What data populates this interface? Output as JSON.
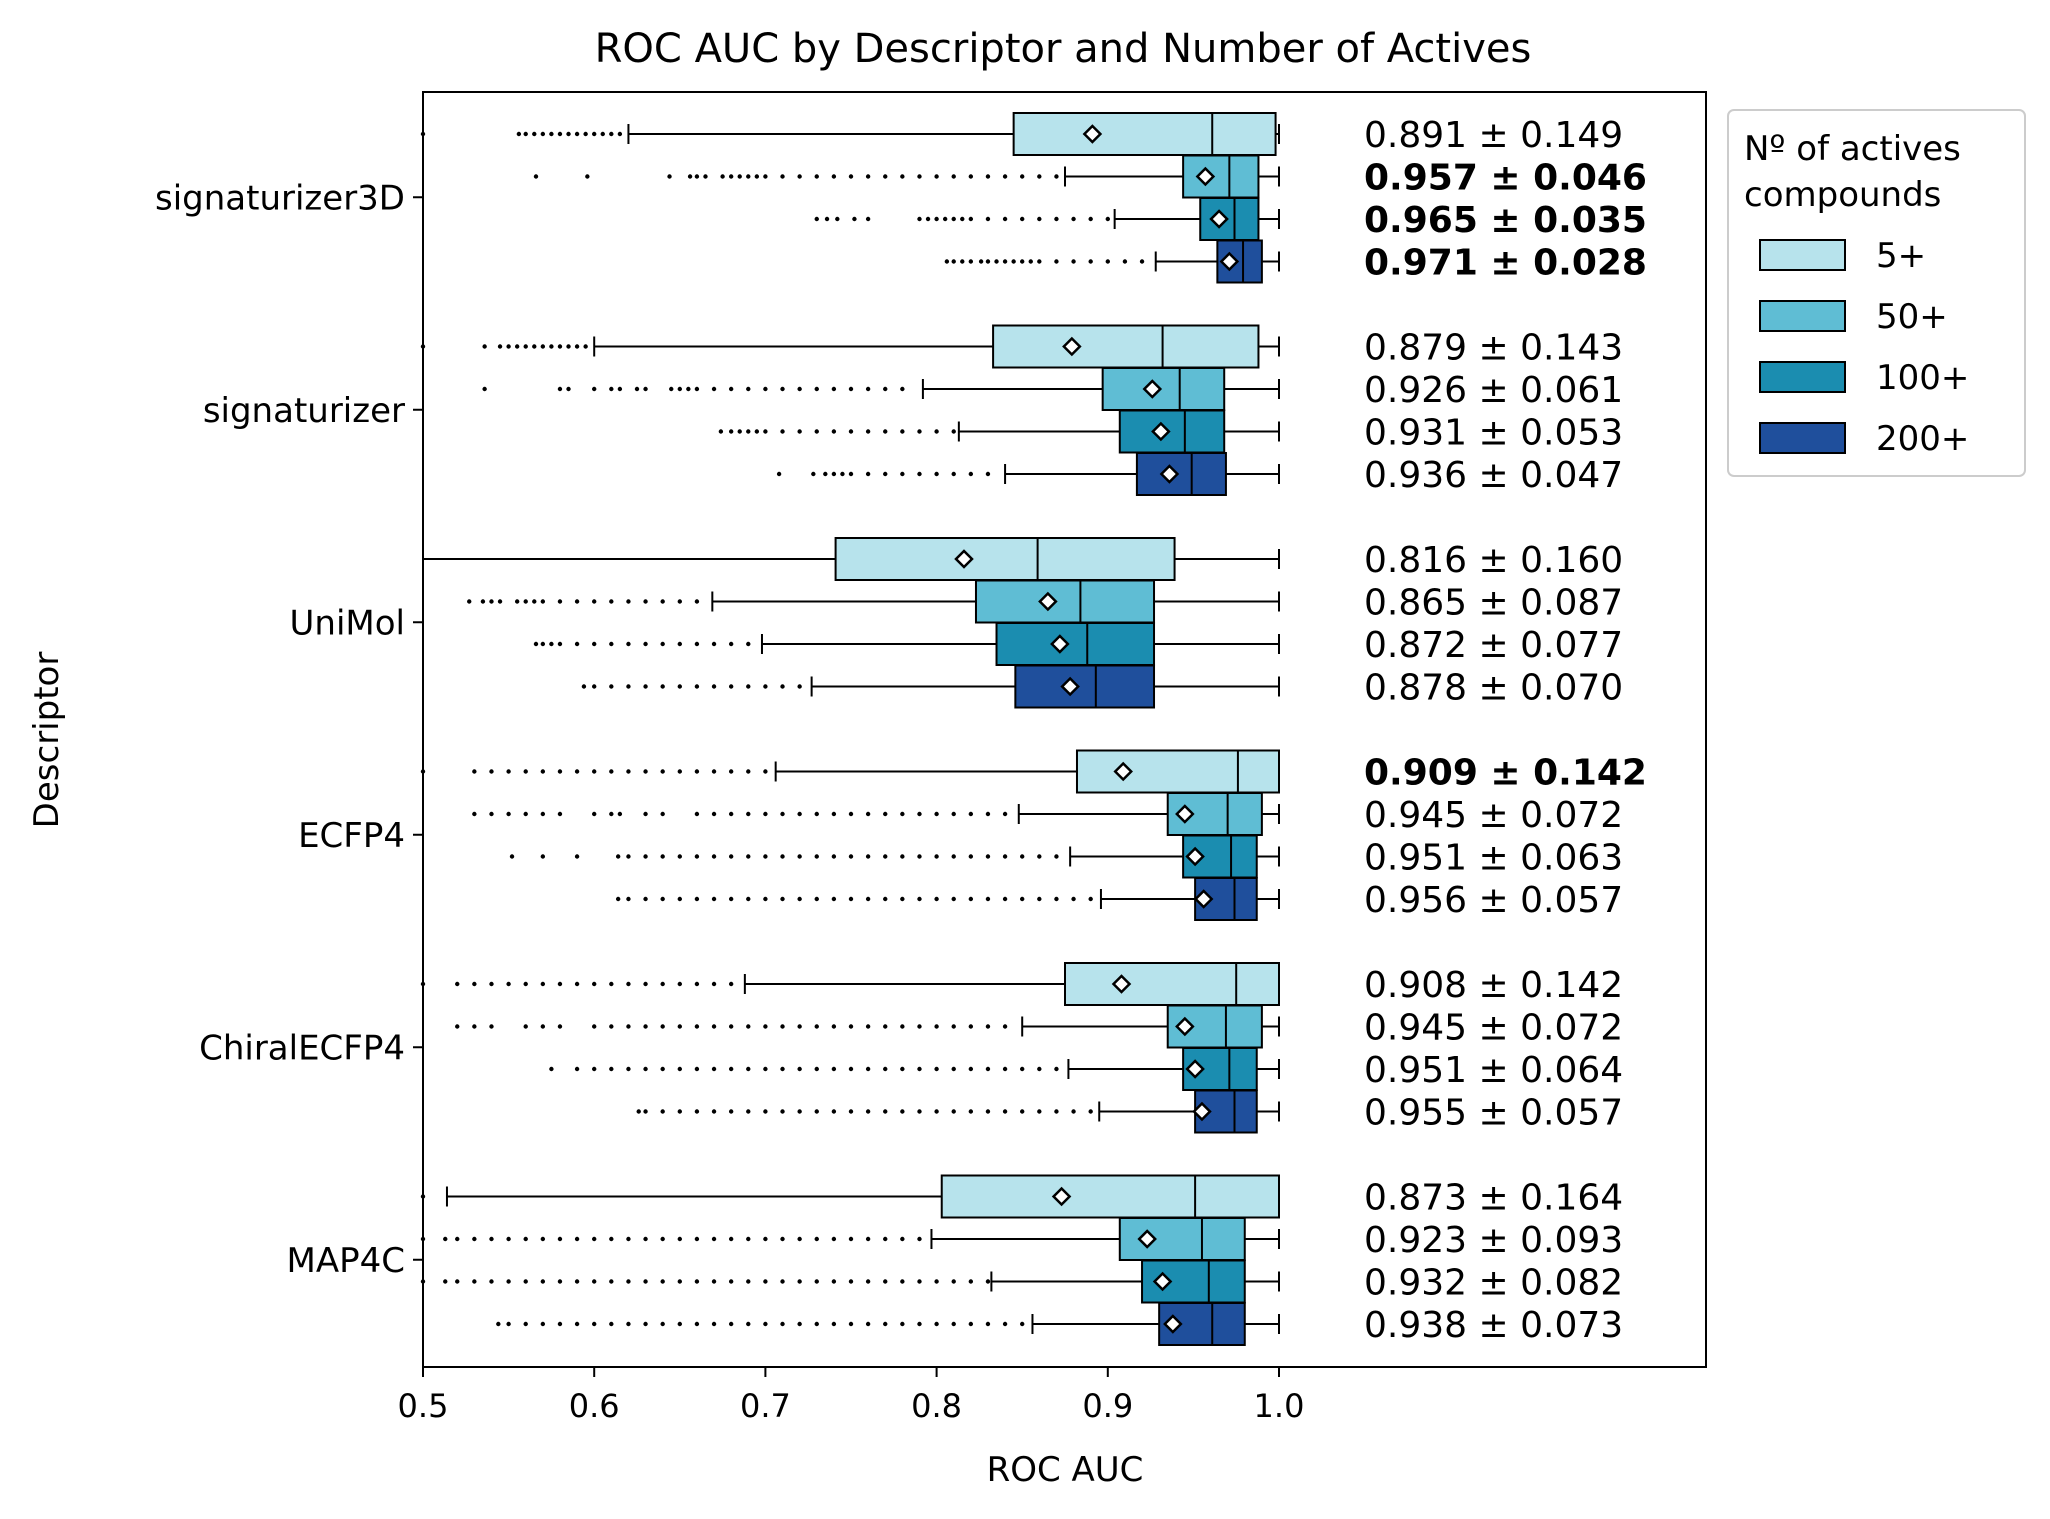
{
  "chart_data": {
    "type": "boxplot",
    "title": "ROC AUC by Descriptor and Number of Actives",
    "xlabel": "ROC AUC",
    "ylabel": "Descriptor",
    "xlim": [
      0.5,
      1.0
    ],
    "xticks": [
      "0.5",
      "0.6",
      "0.7",
      "0.8",
      "0.9",
      "1.0"
    ],
    "legend": {
      "title": "Nº of actives\ncompounds",
      "position": "outside-top-right",
      "entries": [
        {
          "label": "5+",
          "color": "#b7e3ec"
        },
        {
          "label": "50+",
          "color": "#5fbdd4"
        },
        {
          "label": "100+",
          "color": "#1b8db0"
        },
        {
          "label": "200+",
          "color": "#1f4f9c"
        }
      ]
    },
    "groups": [
      {
        "name": "signaturizer3D",
        "boxes": [
          {
            "series": "5+",
            "q1": 0.845,
            "median": 0.961,
            "q3": 0.998,
            "whisker_lo": 0.62,
            "whisker_hi": 1.0,
            "mean": 0.891,
            "label": "0.891 ± 0.149",
            "bold": false,
            "outliers": [
              0.5,
              0.556,
              0.56,
              0.565,
              0.57,
              0.575,
              0.58,
              0.585,
              0.59,
              0.595,
              0.6,
              0.605,
              0.61,
              0.615
            ]
          },
          {
            "series": "50+",
            "q1": 0.944,
            "median": 0.971,
            "q3": 0.988,
            "whisker_lo": 0.875,
            "whisker_hi": 1.0,
            "mean": 0.957,
            "label": "0.957 ± 0.046",
            "bold": true,
            "outliers": [
              0.566,
              0.596,
              0.644,
              0.656,
              0.66,
              0.665,
              0.675,
              0.68,
              0.685,
              0.69,
              0.695,
              0.7,
              0.71,
              0.72,
              0.73,
              0.74,
              0.75,
              0.76,
              0.77,
              0.78,
              0.79,
              0.8,
              0.81,
              0.82,
              0.83,
              0.84,
              0.85,
              0.86,
              0.87
            ]
          },
          {
            "series": "100+",
            "q1": 0.954,
            "median": 0.974,
            "q3": 0.988,
            "whisker_lo": 0.904,
            "whisker_hi": 1.0,
            "mean": 0.965,
            "label": "0.965 ± 0.035",
            "bold": true,
            "outliers": [
              0.73,
              0.736,
              0.742,
              0.752,
              0.76,
              0.79,
              0.795,
              0.8,
              0.805,
              0.81,
              0.815,
              0.82,
              0.83,
              0.84,
              0.85,
              0.86,
              0.87,
              0.88,
              0.89,
              0.9
            ]
          },
          {
            "series": "200+",
            "q1": 0.964,
            "median": 0.979,
            "q3": 0.99,
            "whisker_lo": 0.928,
            "whisker_hi": 1.0,
            "mean": 0.971,
            "label": "0.971 ± 0.028",
            "bold": true,
            "outliers": [
              0.806,
              0.81,
              0.815,
              0.82,
              0.826,
              0.83,
              0.835,
              0.84,
              0.845,
              0.85,
              0.855,
              0.86,
              0.87,
              0.88,
              0.89,
              0.9,
              0.91,
              0.92
            ]
          }
        ]
      },
      {
        "name": "signaturizer",
        "boxes": [
          {
            "series": "5+",
            "q1": 0.833,
            "median": 0.932,
            "q3": 0.988,
            "whisker_lo": 0.6,
            "whisker_hi": 1.0,
            "mean": 0.879,
            "label": "0.879 ± 0.143",
            "bold": false,
            "outliers": [
              0.5,
              0.536,
              0.545,
              0.55,
              0.555,
              0.56,
              0.565,
              0.57,
              0.575,
              0.58,
              0.585,
              0.59,
              0.595
            ]
          },
          {
            "series": "50+",
            "q1": 0.897,
            "median": 0.942,
            "q3": 0.968,
            "whisker_lo": 0.792,
            "whisker_hi": 1.0,
            "mean": 0.926,
            "label": "0.926 ± 0.061",
            "bold": false,
            "outliers": [
              0.536,
              0.58,
              0.585,
              0.6,
              0.61,
              0.615,
              0.625,
              0.63,
              0.645,
              0.65,
              0.655,
              0.66,
              0.67,
              0.68,
              0.69,
              0.7,
              0.71,
              0.72,
              0.73,
              0.74,
              0.75,
              0.76,
              0.77,
              0.78
            ]
          },
          {
            "series": "100+",
            "q1": 0.907,
            "median": 0.945,
            "q3": 0.968,
            "whisker_lo": 0.813,
            "whisker_hi": 1.0,
            "mean": 0.931,
            "label": "0.931 ± 0.053",
            "bold": false,
            "outliers": [
              0.674,
              0.68,
              0.685,
              0.69,
              0.695,
              0.7,
              0.71,
              0.72,
              0.73,
              0.74,
              0.75,
              0.76,
              0.77,
              0.78,
              0.79,
              0.8,
              0.81
            ]
          },
          {
            "series": "200+",
            "q1": 0.917,
            "median": 0.949,
            "q3": 0.969,
            "whisker_lo": 0.84,
            "whisker_hi": 1.0,
            "mean": 0.936,
            "label": "0.936 ± 0.047",
            "bold": false,
            "outliers": [
              0.708,
              0.728,
              0.735,
              0.74,
              0.745,
              0.75,
              0.76,
              0.77,
              0.78,
              0.79,
              0.8,
              0.81,
              0.82,
              0.83
            ]
          }
        ]
      },
      {
        "name": "UniMol",
        "boxes": [
          {
            "series": "5+",
            "q1": 0.741,
            "median": 0.859,
            "q3": 0.939,
            "whisker_lo": 0.5,
            "whisker_hi": 1.0,
            "mean": 0.816,
            "label": "0.816 ± 0.160",
            "bold": false,
            "outliers": []
          },
          {
            "series": "50+",
            "q1": 0.823,
            "median": 0.884,
            "q3": 0.927,
            "whisker_lo": 0.669,
            "whisker_hi": 1.0,
            "mean": 0.865,
            "label": "0.865 ± 0.087",
            "bold": false,
            "outliers": [
              0.527,
              0.535,
              0.54,
              0.545,
              0.555,
              0.56,
              0.565,
              0.57,
              0.58,
              0.59,
              0.6,
              0.61,
              0.62,
              0.63,
              0.64,
              0.65,
              0.66
            ]
          },
          {
            "series": "100+",
            "q1": 0.835,
            "median": 0.888,
            "q3": 0.927,
            "whisker_lo": 0.698,
            "whisker_hi": 1.0,
            "mean": 0.872,
            "label": "0.872 ± 0.077",
            "bold": false,
            "outliers": [
              0.566,
              0.57,
              0.575,
              0.58,
              0.59,
              0.6,
              0.61,
              0.62,
              0.63,
              0.64,
              0.65,
              0.66,
              0.67,
              0.68,
              0.69
            ]
          },
          {
            "series": "200+",
            "q1": 0.846,
            "median": 0.893,
            "q3": 0.927,
            "whisker_lo": 0.727,
            "whisker_hi": 1.0,
            "mean": 0.878,
            "label": "0.878 ± 0.070",
            "bold": false,
            "outliers": [
              0.594,
              0.6,
              0.61,
              0.62,
              0.63,
              0.64,
              0.65,
              0.66,
              0.67,
              0.68,
              0.69,
              0.7,
              0.71,
              0.72
            ]
          }
        ]
      },
      {
        "name": "ECFP4",
        "boxes": [
          {
            "series": "5+",
            "q1": 0.882,
            "median": 0.976,
            "q3": 1.0,
            "whisker_lo": 0.706,
            "whisker_hi": 1.0,
            "mean": 0.909,
            "label": "0.909 ± 0.142",
            "bold": true,
            "outliers": [
              0.5,
              0.53,
              0.54,
              0.55,
              0.56,
              0.57,
              0.58,
              0.59,
              0.6,
              0.61,
              0.62,
              0.63,
              0.64,
              0.65,
              0.66,
              0.67,
              0.68,
              0.69,
              0.7
            ]
          },
          {
            "series": "50+",
            "q1": 0.935,
            "median": 0.97,
            "q3": 0.99,
            "whisker_lo": 0.848,
            "whisker_hi": 1.0,
            "mean": 0.945,
            "label": "0.945 ± 0.072",
            "bold": false,
            "outliers": [
              0.53,
              0.54,
              0.55,
              0.56,
              0.57,
              0.58,
              0.6,
              0.61,
              0.615,
              0.63,
              0.64,
              0.66,
              0.67,
              0.68,
              0.69,
              0.7,
              0.71,
              0.72,
              0.73,
              0.74,
              0.75,
              0.76,
              0.77,
              0.78,
              0.79,
              0.8,
              0.81,
              0.82,
              0.83,
              0.84
            ]
          },
          {
            "series": "100+",
            "q1": 0.944,
            "median": 0.972,
            "q3": 0.987,
            "whisker_lo": 0.878,
            "whisker_hi": 1.0,
            "mean": 0.951,
            "label": "0.951 ± 0.063",
            "bold": false,
            "outliers": [
              0.552,
              0.57,
              0.59,
              0.614,
              0.62,
              0.63,
              0.64,
              0.65,
              0.66,
              0.67,
              0.68,
              0.69,
              0.7,
              0.71,
              0.72,
              0.73,
              0.74,
              0.75,
              0.76,
              0.77,
              0.78,
              0.79,
              0.8,
              0.81,
              0.82,
              0.83,
              0.84,
              0.85,
              0.86,
              0.87
            ]
          },
          {
            "series": "200+",
            "q1": 0.951,
            "median": 0.974,
            "q3": 0.987,
            "whisker_lo": 0.896,
            "whisker_hi": 1.0,
            "mean": 0.956,
            "label": "0.956 ± 0.057",
            "bold": false,
            "outliers": [
              0.614,
              0.62,
              0.63,
              0.64,
              0.65,
              0.66,
              0.67,
              0.68,
              0.69,
              0.7,
              0.71,
              0.72,
              0.73,
              0.74,
              0.75,
              0.76,
              0.77,
              0.78,
              0.79,
              0.8,
              0.81,
              0.82,
              0.83,
              0.84,
              0.85,
              0.86,
              0.87,
              0.88,
              0.89
            ]
          }
        ]
      },
      {
        "name": "ChiralECFP4",
        "boxes": [
          {
            "series": "5+",
            "q1": 0.875,
            "median": 0.975,
            "q3": 1.0,
            "whisker_lo": 0.688,
            "whisker_hi": 1.0,
            "mean": 0.908,
            "label": "0.908 ± 0.142",
            "bold": false,
            "outliers": [
              0.5,
              0.52,
              0.53,
              0.54,
              0.55,
              0.56,
              0.57,
              0.58,
              0.59,
              0.6,
              0.61,
              0.62,
              0.63,
              0.64,
              0.65,
              0.66,
              0.67,
              0.68
            ]
          },
          {
            "series": "50+",
            "q1": 0.935,
            "median": 0.969,
            "q3": 0.99,
            "whisker_lo": 0.85,
            "whisker_hi": 1.0,
            "mean": 0.945,
            "label": "0.945 ± 0.072",
            "bold": false,
            "outliers": [
              0.52,
              0.53,
              0.54,
              0.56,
              0.57,
              0.58,
              0.6,
              0.61,
              0.62,
              0.63,
              0.64,
              0.65,
              0.66,
              0.67,
              0.68,
              0.69,
              0.7,
              0.71,
              0.72,
              0.73,
              0.74,
              0.75,
              0.76,
              0.77,
              0.78,
              0.79,
              0.8,
              0.81,
              0.82,
              0.83,
              0.84
            ]
          },
          {
            "series": "100+",
            "q1": 0.944,
            "median": 0.971,
            "q3": 0.987,
            "whisker_lo": 0.877,
            "whisker_hi": 1.0,
            "mean": 0.951,
            "label": "0.951 ± 0.064",
            "bold": false,
            "outliers": [
              0.575,
              0.59,
              0.6,
              0.61,
              0.62,
              0.63,
              0.64,
              0.65,
              0.66,
              0.67,
              0.68,
              0.69,
              0.7,
              0.71,
              0.72,
              0.73,
              0.74,
              0.75,
              0.76,
              0.77,
              0.78,
              0.79,
              0.8,
              0.81,
              0.82,
              0.83,
              0.84,
              0.85,
              0.86,
              0.87
            ]
          },
          {
            "series": "200+",
            "q1": 0.951,
            "median": 0.974,
            "q3": 0.987,
            "whisker_lo": 0.895,
            "whisker_hi": 1.0,
            "mean": 0.955,
            "label": "0.955 ± 0.057",
            "bold": false,
            "outliers": [
              0.626,
              0.63,
              0.64,
              0.65,
              0.66,
              0.67,
              0.68,
              0.69,
              0.7,
              0.71,
              0.72,
              0.73,
              0.74,
              0.75,
              0.76,
              0.77,
              0.78,
              0.79,
              0.8,
              0.81,
              0.82,
              0.83,
              0.84,
              0.85,
              0.86,
              0.87,
              0.88,
              0.89
            ]
          }
        ]
      },
      {
        "name": "MAP4C",
        "boxes": [
          {
            "series": "5+",
            "q1": 0.803,
            "median": 0.951,
            "q3": 1.0,
            "whisker_lo": 0.514,
            "whisker_hi": 1.0,
            "mean": 0.873,
            "label": "0.873 ± 0.164",
            "bold": false,
            "outliers": [
              0.5
            ]
          },
          {
            "series": "50+",
            "q1": 0.907,
            "median": 0.955,
            "q3": 0.98,
            "whisker_lo": 0.797,
            "whisker_hi": 1.0,
            "mean": 0.923,
            "label": "0.923 ± 0.093",
            "bold": false,
            "outliers": [
              0.5,
              0.513,
              0.52,
              0.53,
              0.54,
              0.55,
              0.56,
              0.57,
              0.58,
              0.59,
              0.6,
              0.61,
              0.62,
              0.63,
              0.64,
              0.65,
              0.66,
              0.67,
              0.68,
              0.69,
              0.7,
              0.71,
              0.72,
              0.73,
              0.74,
              0.75,
              0.76,
              0.77,
              0.78,
              0.79
            ]
          },
          {
            "series": "100+",
            "q1": 0.92,
            "median": 0.959,
            "q3": 0.98,
            "whisker_lo": 0.832,
            "whisker_hi": 1.0,
            "mean": 0.932,
            "label": "0.932 ± 0.082",
            "bold": false,
            "outliers": [
              0.5,
              0.513,
              0.52,
              0.53,
              0.54,
              0.55,
              0.56,
              0.57,
              0.58,
              0.59,
              0.6,
              0.61,
              0.62,
              0.63,
              0.64,
              0.65,
              0.66,
              0.67,
              0.68,
              0.69,
              0.7,
              0.71,
              0.72,
              0.73,
              0.74,
              0.75,
              0.76,
              0.77,
              0.78,
              0.79,
              0.8,
              0.81,
              0.82,
              0.83
            ]
          },
          {
            "series": "200+",
            "q1": 0.93,
            "median": 0.961,
            "q3": 0.98,
            "whisker_lo": 0.856,
            "whisker_hi": 1.0,
            "mean": 0.938,
            "label": "0.938 ± 0.073",
            "bold": false,
            "outliers": [
              0.544,
              0.55,
              0.56,
              0.57,
              0.58,
              0.59,
              0.6,
              0.61,
              0.62,
              0.63,
              0.64,
              0.65,
              0.66,
              0.67,
              0.68,
              0.69,
              0.7,
              0.71,
              0.72,
              0.73,
              0.74,
              0.75,
              0.76,
              0.77,
              0.78,
              0.79,
              0.8,
              0.81,
              0.82,
              0.83,
              0.84,
              0.85
            ]
          }
        ]
      }
    ]
  }
}
